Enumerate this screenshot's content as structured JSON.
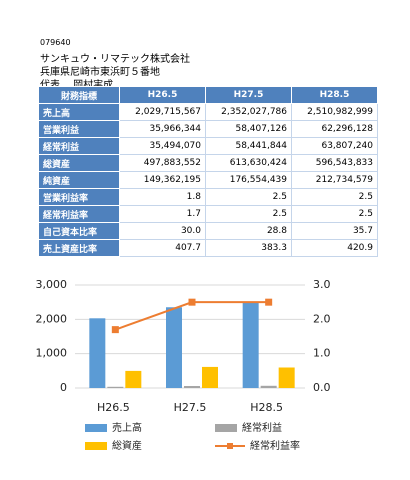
{
  "header": {
    "code": "079640",
    "company": "サンキュウ・リマテック株式会社",
    "address": "兵庫県尼崎市東浜町５番地",
    "representative": "代表　 岡村実成"
  },
  "table": {
    "header": [
      "財務指標",
      "H26.5",
      "H27.5",
      "H28.5"
    ],
    "rows": [
      [
        "売上高",
        "2,029,715,567",
        "2,352,027,786",
        "2,510,982,999"
      ],
      [
        "営業利益",
        "35,966,344",
        "58,407,126",
        "62,296,128"
      ],
      [
        "経常利益",
        "35,494,070",
        "58,441,844",
        "63,807,240"
      ],
      [
        "総資産",
        "497,883,552",
        "613,630,424",
        "596,543,833"
      ],
      [
        "純資産",
        "149,362,195",
        "176,554,439",
        "212,734,579"
      ],
      [
        "営業利益率",
        "1.8",
        "2.5",
        "2.5"
      ],
      [
        "経常利益率",
        "1.7",
        "2.5",
        "2.5"
      ],
      [
        "自己資本比率",
        "30.0",
        "28.8",
        "35.7"
      ],
      [
        "売上資産比率",
        "407.7",
        "383.3",
        "420.9"
      ]
    ]
  },
  "chart_data": {
    "type": "bar",
    "categories": [
      "H26.5",
      "H27.5",
      "H28.5"
    ],
    "series": [
      {
        "name": "売上高",
        "color": "#5b9bd5",
        "values": [
          2030,
          2352,
          2511
        ]
      },
      {
        "name": "経常利益",
        "color": "#a5a5a5",
        "values": [
          35,
          58,
          64
        ]
      },
      {
        "name": "総資産",
        "color": "#ffc000",
        "values": [
          498,
          614,
          597
        ]
      },
      {
        "name": "経常利益率",
        "color": "#ed7d31",
        "type": "line",
        "axis": "y2",
        "values": [
          1.7,
          2.5,
          2.5
        ]
      }
    ],
    "ylim": [
      0,
      3000
    ],
    "yticks": [
      0,
      {
        "value": 1000,
        "label": "1,000"
      },
      {
        "value": 2000,
        "label": "2,000"
      },
      {
        "value": 3000,
        "label": "3,000"
      }
    ],
    "y2lim": [
      0,
      3
    ],
    "y2ticks": [
      {
        "value": 0,
        "label": "0.0"
      },
      {
        "value": 1,
        "label": "1.0"
      },
      {
        "value": 2,
        "label": "2.0"
      },
      {
        "value": 3,
        "label": "3.0"
      }
    ],
    "grid": true
  }
}
